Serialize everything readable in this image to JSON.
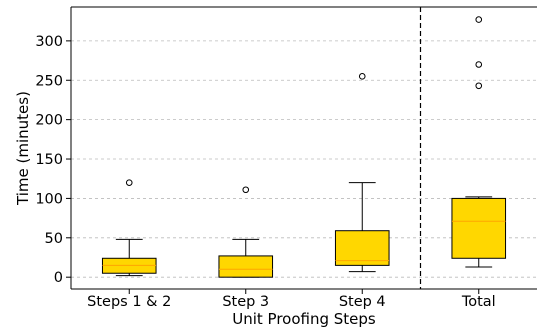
{
  "chart_data": {
    "type": "box",
    "title": "",
    "xlabel": "Unit Proofing Steps",
    "ylabel": "Time (minutes)",
    "ylim": [
      -15,
      343
    ],
    "yticks": [
      0,
      50,
      100,
      150,
      200,
      250,
      300
    ],
    "ytick_labels": [
      "0",
      "50",
      "100",
      "150",
      "200",
      "250",
      "300"
    ],
    "grid": "horizontal dashed",
    "categories": [
      "Steps 1 & 2",
      "Step 3",
      "Step 4",
      "Total"
    ],
    "boxes": [
      {
        "category": "Steps 1 & 2",
        "whisker_low": 2,
        "q1": 5,
        "median": 15,
        "q3": 24,
        "whisker_high": 48,
        "outliers": [
          120
        ]
      },
      {
        "category": "Step 3",
        "whisker_low": 0,
        "q1": 0,
        "median": 10,
        "q3": 27,
        "whisker_high": 48,
        "outliers": [
          111
        ]
      },
      {
        "category": "Step 4",
        "whisker_low": 7,
        "q1": 15,
        "median": 21,
        "q3": 59,
        "whisker_high": 120,
        "outliers": [
          255
        ]
      },
      {
        "category": "Total",
        "whisker_low": 13,
        "q1": 24,
        "median": 71,
        "q3": 100,
        "whisker_high": 102,
        "outliers": [
          243,
          270,
          327
        ]
      }
    ],
    "separator_after_category": "Step 4",
    "colors": {
      "box_fill": "#FFD700",
      "median": "#FFA500",
      "edge": "#000000",
      "grid": "#bbbbbb"
    }
  }
}
